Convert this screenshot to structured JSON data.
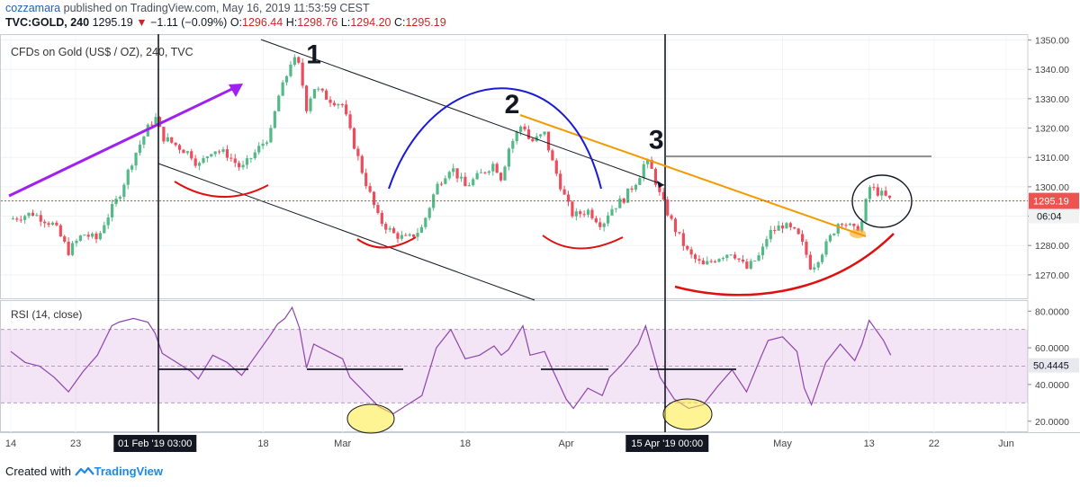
{
  "header": {
    "publisher": "cozzamara",
    "published_text": "published on TradingView.com, May 16, 2019 11:53:59 CEST",
    "symbol": "TVC:GOLD, 240",
    "last": "1295.19",
    "change_arrow": "▼",
    "change": "−1.11 (−0.09%)",
    "o_label": "O:",
    "o_value": "1296.44",
    "h_label": "H:",
    "h_value": "1298.76",
    "l_label": "L:",
    "l_value": "1294.20",
    "c_label": "C:",
    "c_value": "1295.19"
  },
  "chart_data": {
    "type": "candlestick",
    "title": "CFDs on Gold (US$ / OZ), 240, TVC",
    "y_axis": {
      "min": 1262,
      "max": 1352,
      "ticks": [
        1270,
        1280,
        1290,
        1300,
        1310,
        1320,
        1330,
        1340,
        1350
      ],
      "tick_labels": [
        "1270.00",
        "1280.00",
        "1290.00",
        "1300.00",
        "1310.00",
        "1320.00",
        "1330.00",
        "1340.00",
        "1350.00"
      ]
    },
    "x_axis": {
      "ticks": [
        {
          "label": "14",
          "t": 0
        },
        {
          "label": "23",
          "t": 9
        },
        {
          "label": "18",
          "t": 35
        },
        {
          "label": "Mar",
          "t": 46
        },
        {
          "label": "18",
          "t": 63
        },
        {
          "label": "Apr",
          "t": 77
        },
        {
          "label": "15 Apr '19  00:00",
          "t": 91,
          "highlight": true
        },
        {
          "label": "May",
          "t": 107
        },
        {
          "label": "13",
          "t": 119
        },
        {
          "label": "22",
          "t": 128
        },
        {
          "label": "Jun",
          "t": 138
        }
      ],
      "range": [
        -1,
        141
      ],
      "crosshair_label": {
        "label": "01 Feb '19  03:00",
        "t": 20
      }
    },
    "price_path": [
      [
        0,
        1289
      ],
      [
        3,
        1291
      ],
      [
        6,
        1287
      ],
      [
        8,
        1278
      ],
      [
        10,
        1284
      ],
      [
        12,
        1282
      ],
      [
        13,
        1288
      ],
      [
        15,
        1297
      ],
      [
        17,
        1310
      ],
      [
        19,
        1320
      ],
      [
        20,
        1324
      ],
      [
        21,
        1317
      ],
      [
        23,
        1314
      ],
      [
        25,
        1311
      ],
      [
        26,
        1307
      ],
      [
        28,
        1313
      ],
      [
        30,
        1311
      ],
      [
        32,
        1306
      ],
      [
        34,
        1312
      ],
      [
        36,
        1318
      ],
      [
        37,
        1330
      ],
      [
        38,
        1336
      ],
      [
        39,
        1344
      ],
      [
        40,
        1341
      ],
      [
        41,
        1327
      ],
      [
        42,
        1334
      ],
      [
        44,
        1330
      ],
      [
        46,
        1328
      ],
      [
        47,
        1319
      ],
      [
        49,
        1303
      ],
      [
        51,
        1289
      ],
      [
        53,
        1284
      ],
      [
        55,
        1282
      ],
      [
        57,
        1286
      ],
      [
        59,
        1300
      ],
      [
        61,
        1307
      ],
      [
        63,
        1300
      ],
      [
        65,
        1304
      ],
      [
        67,
        1308
      ],
      [
        68,
        1303
      ],
      [
        69,
        1313
      ],
      [
        71,
        1322
      ],
      [
        72,
        1315
      ],
      [
        74,
        1318
      ],
      [
        75,
        1309
      ],
      [
        77,
        1295
      ],
      [
        78,
        1290
      ],
      [
        80,
        1292
      ],
      [
        82,
        1287
      ],
      [
        83,
        1292
      ],
      [
        85,
        1296
      ],
      [
        87,
        1303
      ],
      [
        88,
        1309
      ],
      [
        89,
        1305
      ],
      [
        90,
        1297
      ],
      [
        92,
        1286
      ],
      [
        94,
        1277
      ],
      [
        96,
        1273
      ],
      [
        98,
        1276
      ],
      [
        100,
        1278
      ],
      [
        102,
        1272
      ],
      [
        104,
        1277
      ],
      [
        105,
        1284
      ],
      [
        107,
        1287
      ],
      [
        109,
        1284
      ],
      [
        110,
        1279
      ],
      [
        111,
        1272
      ],
      [
        113,
        1280
      ],
      [
        115,
        1289
      ],
      [
        117,
        1285
      ],
      [
        118,
        1288
      ],
      [
        119,
        1300
      ],
      [
        121,
        1297
      ],
      [
        122,
        1295.19
      ]
    ],
    "last_price": {
      "value": 1295.19,
      "label": "1295.19",
      "countdown": "06:04"
    },
    "annotations": [
      {
        "type": "text",
        "text": "1",
        "t": 42,
        "price": 1342
      },
      {
        "type": "text",
        "text": "2",
        "t": 69.5,
        "price": 1325
      },
      {
        "type": "text",
        "text": "3",
        "t": 89.5,
        "price": 1313
      }
    ],
    "rsi": {
      "title": "RSI (14, close)",
      "min": 14,
      "max": 86,
      "ticks": [
        20,
        40,
        60,
        80
      ],
      "tick_labels": [
        "20.0000",
        "40.0000",
        "60.0000",
        "80.0000"
      ],
      "band": [
        30,
        70
      ],
      "midline": 50,
      "last": {
        "value": 50.4445,
        "label": "50.4445"
      },
      "path": [
        [
          0,
          58
        ],
        [
          2,
          52
        ],
        [
          4,
          50
        ],
        [
          6,
          44
        ],
        [
          8,
          36
        ],
        [
          10,
          47
        ],
        [
          12,
          56
        ],
        [
          13,
          64
        ],
        [
          14,
          72
        ],
        [
          15,
          74
        ],
        [
          17,
          76
        ],
        [
          19,
          74
        ],
        [
          20,
          68
        ],
        [
          21,
          57
        ],
        [
          23,
          52
        ],
        [
          25,
          47
        ],
        [
          26,
          43
        ],
        [
          28,
          56
        ],
        [
          30,
          52
        ],
        [
          32,
          45
        ],
        [
          34,
          56
        ],
        [
          36,
          67
        ],
        [
          37,
          73
        ],
        [
          38,
          76
        ],
        [
          39,
          82
        ],
        [
          40,
          71
        ],
        [
          41,
          49
        ],
        [
          42,
          62
        ],
        [
          44,
          58
        ],
        [
          46,
          54
        ],
        [
          47,
          44
        ],
        [
          49,
          36
        ],
        [
          51,
          28
        ],
        [
          53,
          24
        ],
        [
          55,
          29
        ],
        [
          57,
          34
        ],
        [
          59,
          60
        ],
        [
          61,
          70
        ],
        [
          63,
          54
        ],
        [
          65,
          56
        ],
        [
          67,
          61
        ],
        [
          68,
          56
        ],
        [
          69,
          59
        ],
        [
          71,
          72
        ],
        [
          72,
          56
        ],
        [
          74,
          58
        ],
        [
          75,
          49
        ],
        [
          77,
          32
        ],
        [
          78,
          27
        ],
        [
          80,
          38
        ],
        [
          82,
          34
        ],
        [
          83,
          44
        ],
        [
          85,
          52
        ],
        [
          87,
          62
        ],
        [
          88,
          72
        ],
        [
          89,
          58
        ],
        [
          90,
          44
        ],
        [
          92,
          32
        ],
        [
          94,
          27
        ],
        [
          96,
          29
        ],
        [
          98,
          39
        ],
        [
          100,
          48
        ],
        [
          102,
          36
        ],
        [
          104,
          55
        ],
        [
          105,
          64
        ],
        [
          107,
          66
        ],
        [
          109,
          58
        ],
        [
          110,
          38
        ],
        [
          111,
          29
        ],
        [
          113,
          52
        ],
        [
          115,
          62
        ],
        [
          117,
          53
        ],
        [
          118,
          62
        ],
        [
          119,
          75
        ],
        [
          121,
          64
        ],
        [
          122,
          56
        ]
      ]
    }
  },
  "footer": {
    "prefix": "Created with",
    "brand": "TradingView"
  }
}
